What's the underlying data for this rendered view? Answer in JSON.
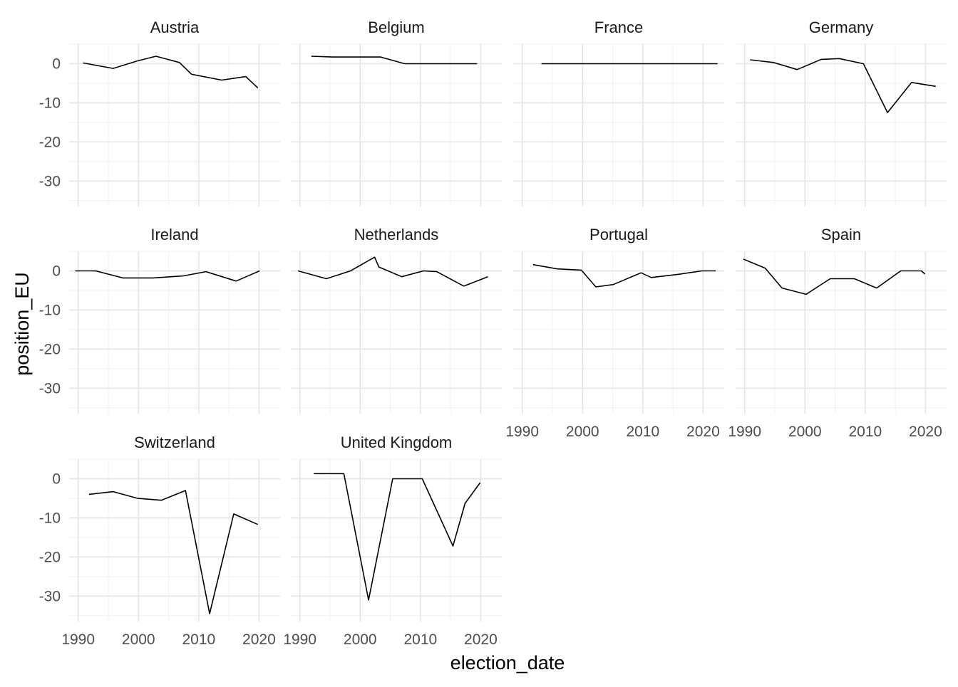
{
  "chart_data": {
    "type": "line",
    "facet": "country",
    "xlabel": "election_date",
    "ylabel": "position_EU",
    "xlim": [
      1988.5,
      2023.5
    ],
    "ylim": [
      -36.5,
      5
    ],
    "x_ticks": [
      1990,
      2000,
      2010,
      2020
    ],
    "y_ticks": [
      0,
      -10,
      -20,
      -30
    ],
    "grid": true,
    "line_color": "#000000",
    "panels": [
      {
        "name": "Austria",
        "x": [
          1990.8,
          1995.8,
          1999.8,
          2002.9,
          2006.8,
          2008.8,
          2013.8,
          2017.8,
          2019.8
        ],
        "y": [
          0.2,
          -1.2,
          0.7,
          1.9,
          0.3,
          -2.7,
          -4.2,
          -3.3,
          -6.2
        ]
      },
      {
        "name": "Belgium",
        "x": [
          1991.9,
          1995.4,
          1999.5,
          2003.4,
          2007.4,
          2010.5,
          2014.4,
          2019.4
        ],
        "y": [
          1.9,
          1.7,
          1.7,
          1.7,
          0.0,
          0.0,
          0.0,
          0.0
        ]
      },
      {
        "name": "France",
        "x": [
          1993.2,
          1997.4,
          2002.4,
          2007.4,
          2012.4,
          2017.4,
          2022.4
        ],
        "y": [
          0.0,
          0.0,
          0.0,
          0.0,
          0.0,
          0.0,
          0.0
        ]
      },
      {
        "name": "Germany",
        "x": [
          1990.9,
          1994.8,
          1998.7,
          2002.7,
          2005.7,
          2009.7,
          2013.7,
          2017.7,
          2021.7
        ],
        "y": [
          1.0,
          0.3,
          -1.5,
          1.1,
          1.3,
          0.0,
          -12.5,
          -4.8,
          -5.8
        ]
      },
      {
        "name": "Ireland",
        "x": [
          1989.5,
          1992.9,
          1997.4,
          2002.4,
          2007.4,
          2011.2,
          2016.2,
          2020.1
        ],
        "y": [
          0.0,
          0.0,
          -1.8,
          -1.8,
          -1.3,
          -0.2,
          -2.6,
          0.0
        ]
      },
      {
        "name": "Netherlands",
        "x": [
          1989.7,
          1994.4,
          1998.4,
          2002.4,
          2003.1,
          2006.9,
          2010.5,
          2012.7,
          2017.2,
          2021.2
        ],
        "y": [
          0.0,
          -2.0,
          0.0,
          3.5,
          1.0,
          -1.5,
          0.0,
          -0.2,
          -3.9,
          -1.5
        ]
      },
      {
        "name": "Portugal",
        "x": [
          1991.8,
          1995.8,
          1999.8,
          2002.2,
          2005.1,
          2009.7,
          2011.4,
          2015.8,
          2019.8,
          2022.1
        ],
        "y": [
          1.6,
          0.5,
          0.2,
          -4.1,
          -3.5,
          -0.5,
          -1.7,
          -0.9,
          0.0,
          0.0
        ]
      },
      {
        "name": "Spain",
        "x": [
          1989.8,
          1993.4,
          1996.2,
          2000.2,
          2004.2,
          2008.2,
          2011.9,
          2015.9,
          2016.5,
          2019.3,
          2019.9
        ],
        "y": [
          3.0,
          0.7,
          -4.4,
          -6.0,
          -2.0,
          -2.0,
          -4.4,
          0.0,
          0.0,
          0.0,
          -0.8
        ]
      },
      {
        "name": "Switzerland",
        "x": [
          1991.8,
          1995.8,
          1999.8,
          2003.8,
          2007.8,
          2011.8,
          2015.8,
          2019.8
        ],
        "y": [
          -4.0,
          -3.3,
          -5.0,
          -5.5,
          -3.0,
          -34.5,
          -9.0,
          -11.7
        ]
      },
      {
        "name": "United Kingdom",
        "x": [
          1992.3,
          1997.3,
          2001.4,
          2005.4,
          2010.3,
          2015.4,
          2017.4,
          2019.9
        ],
        "y": [
          1.3,
          1.3,
          -31.0,
          0.0,
          0.0,
          -17.2,
          -6.3,
          -1.0
        ]
      }
    ]
  }
}
